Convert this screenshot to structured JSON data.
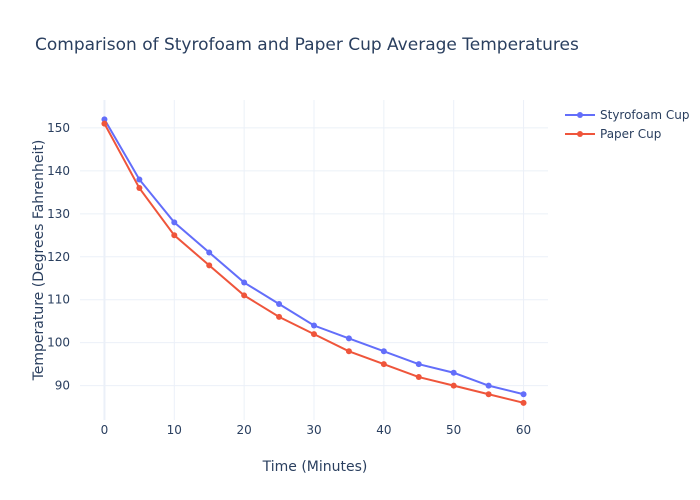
{
  "chart_data": {
    "type": "line",
    "title": "Comparison of Styrofoam and Paper Cup Average Temperatures",
    "xlabel": "Time (Minutes)",
    "ylabel": "Temperature (Degrees Fahrenheit)",
    "x": [
      0,
      5,
      10,
      15,
      20,
      25,
      30,
      35,
      40,
      45,
      50,
      55,
      60
    ],
    "xlim": [
      -3.5,
      63.5
    ],
    "ylim": [
      82,
      156.5
    ],
    "xticks": [
      0,
      10,
      20,
      30,
      40,
      50,
      60
    ],
    "yticks": [
      90,
      100,
      110,
      120,
      130,
      140,
      150
    ],
    "grid": true,
    "legend_position": "top-right",
    "series": [
      {
        "name": "Styrofoam Cup",
        "color": "#636efa",
        "values": [
          152,
          138,
          128,
          121,
          114,
          109,
          104,
          101,
          98,
          95,
          93,
          90,
          88
        ]
      },
      {
        "name": "Paper Cup",
        "color": "#ef553b",
        "values": [
          151,
          136,
          125,
          118,
          111,
          106,
          102,
          98,
          95,
          92,
          90,
          88,
          86
        ]
      }
    ]
  }
}
